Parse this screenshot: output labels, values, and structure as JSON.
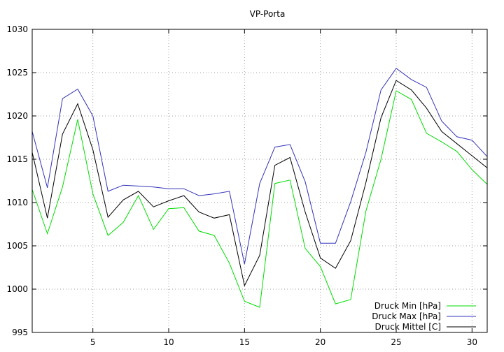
{
  "chart_data": {
    "type": "line",
    "title": "VP-Porta",
    "xlabel": "",
    "ylabel": "",
    "xlim": [
      1,
      31
    ],
    "ylim": [
      995,
      1030
    ],
    "xticks": [
      5,
      10,
      15,
      20,
      25,
      30
    ],
    "yticks": [
      995,
      1000,
      1005,
      1010,
      1015,
      1020,
      1025,
      1030
    ],
    "grid": true,
    "legend_position": "bottom-right",
    "x": [
      1,
      2,
      3,
      4,
      5,
      6,
      7,
      8,
      9,
      10,
      11,
      12,
      13,
      14,
      15,
      16,
      17,
      18,
      19,
      20,
      21,
      22,
      23,
      24,
      25,
      26,
      27,
      28,
      29,
      30,
      31
    ],
    "series": [
      {
        "name": "Druck Min [hPa]",
        "color": "#00dd00",
        "values": [
          1011.5,
          1006.4,
          1011.8,
          1019.6,
          1011.0,
          1006.2,
          1007.7,
          1010.8,
          1006.9,
          1009.3,
          1009.4,
          1006.7,
          1006.2,
          1003.0,
          998.6,
          997.9,
          1012.2,
          1012.6,
          1004.7,
          1002.6,
          998.3,
          998.8,
          1009.0,
          1015.0,
          1022.9,
          1021.9,
          1018.0,
          1017.0,
          1015.9,
          1013.8,
          1012.1
        ]
      },
      {
        "name": "Druck Max [hPa]",
        "color": "#3333bb",
        "values": [
          1018.2,
          1011.7,
          1022.0,
          1023.1,
          1020.0,
          1011.3,
          1012.0,
          1011.9,
          1011.8,
          1011.6,
          1011.6,
          1010.8,
          1011.0,
          1011.3,
          1002.9,
          1012.2,
          1016.4,
          1016.7,
          1012.4,
          1005.3,
          1005.3,
          1010.1,
          1015.8,
          1023.0,
          1025.5,
          1024.2,
          1023.3,
          1019.4,
          1017.6,
          1017.2,
          1015.3
        ]
      },
      {
        "name": "Druck Mittel [C]",
        "color": "#000000",
        "values": [
          1015.8,
          1008.2,
          1017.9,
          1021.4,
          1016.1,
          1008.3,
          1010.3,
          1011.3,
          1009.5,
          1010.2,
          1010.8,
          1008.9,
          1008.2,
          1008.6,
          1000.4,
          1003.9,
          1014.3,
          1015.2,
          1008.9,
          1003.6,
          1002.4,
          1005.6,
          1012.3,
          1019.8,
          1024.1,
          1023.0,
          1020.9,
          1018.2,
          1016.8,
          1015.4,
          1014.0
        ]
      }
    ]
  }
}
